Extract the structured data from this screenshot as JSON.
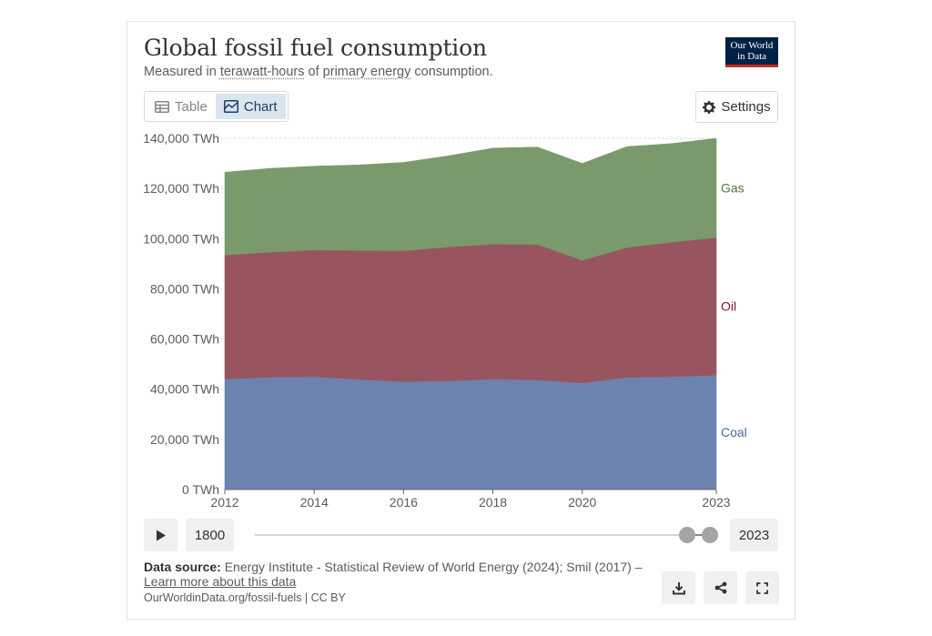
{
  "header": {
    "title": "Global fossil fuel consumption",
    "subtitle_prefix": "Measured in",
    "subtitle_term1": "terawatt-hours",
    "subtitle_mid": "of",
    "subtitle_term2": "primary energy",
    "subtitle_suffix": "consumption.",
    "logo_line1": "Our World",
    "logo_line2": "in Data"
  },
  "tabs": [
    {
      "label": "Table",
      "icon": "table-icon",
      "active": false
    },
    {
      "label": "Chart",
      "icon": "chart-icon",
      "active": true
    }
  ],
  "settings_label": "Settings",
  "chart_data": {
    "type": "area",
    "stacked": true,
    "title": "Global fossil fuel consumption",
    "ylabel": "",
    "xlabel": "",
    "unit": "TWh",
    "ylim": [
      0,
      140000
    ],
    "y_ticks": [
      "0 TWh",
      "20,000 TWh",
      "40,000 TWh",
      "60,000 TWh",
      "80,000 TWh",
      "100,000 TWh",
      "120,000 TWh",
      "140,000 TWh"
    ],
    "y_tick_values": [
      0,
      20000,
      40000,
      60000,
      80000,
      100000,
      120000,
      140000
    ],
    "x_ticks": [
      "2012",
      "2014",
      "2016",
      "2018",
      "2020",
      "2023"
    ],
    "x_tick_values": [
      2012,
      2014,
      2016,
      2018,
      2020,
      2023
    ],
    "xlim": [
      2012,
      2023
    ],
    "x": [
      2012,
      2013,
      2014,
      2015,
      2016,
      2017,
      2018,
      2019,
      2020,
      2021,
      2022,
      2023
    ],
    "series": [
      {
        "name": "Coal",
        "color": "#6c83b0",
        "label_color": "#4b6a9b",
        "values": [
          44000,
          44800,
          45000,
          43900,
          43000,
          43300,
          44000,
          43700,
          42500,
          44700,
          45000,
          45600
        ]
      },
      {
        "name": "Oil",
        "color": "#985560",
        "label_color": "#7a2030",
        "values": [
          49500,
          49800,
          50500,
          51400,
          52200,
          53400,
          53800,
          54000,
          48900,
          51800,
          53600,
          54800
        ]
      },
      {
        "name": "Gas",
        "color": "#7a9a6c",
        "label_color": "#56733f",
        "values": [
          33000,
          33400,
          33400,
          34100,
          35200,
          36300,
          38300,
          38800,
          38600,
          40200,
          39300,
          39600
        ]
      }
    ]
  },
  "timeline": {
    "start_year": "1800",
    "end_year": "2023"
  },
  "footer": {
    "source_label": "Data source:",
    "source_text": "Energy Institute - Statistical Review of World Energy (2024); Smil (2017) –",
    "learn_more": "Learn more about this data",
    "origin": "OurWorldinData.org/fossil-fuels | CC BY"
  }
}
